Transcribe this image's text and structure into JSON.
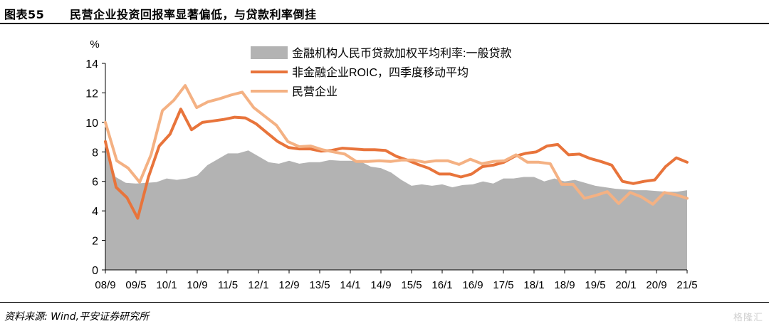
{
  "header": {
    "figure_num": "图表55",
    "title": "民营企业投资回报率显著偏低，与贷款利率倒挂"
  },
  "footer": {
    "source": "资料来源: Wind,平安证券研究所",
    "watermark": "格隆汇"
  },
  "chart_data": {
    "type": "line",
    "ylabel": "%",
    "ylim": [
      0,
      14
    ],
    "yticks": [
      0,
      2,
      4,
      6,
      8,
      10,
      12,
      14
    ],
    "x_tick_labels": [
      "08/9",
      "09/5",
      "10/1",
      "10/9",
      "11/5",
      "12/1",
      "12/9",
      "13/5",
      "14/1",
      "14/9",
      "15/5",
      "16/1",
      "16/9",
      "17/5",
      "18/1",
      "18/9",
      "19/5",
      "20/1",
      "20/9",
      "21/5"
    ],
    "legend": "top-right",
    "colors": {
      "area": "#b3b3b3",
      "roic": "#e8743b",
      "private": "#f4b183"
    },
    "series": [
      {
        "name": "金融机构人民币贷款加权平均利率:一般贷款",
        "style": "area",
        "values": [
          8.5,
          6.3,
          5.9,
          5.85,
          5.9,
          5.95,
          6.2,
          6.1,
          6.2,
          6.4,
          7.1,
          7.5,
          7.9,
          7.9,
          8.1,
          7.7,
          7.3,
          7.2,
          7.4,
          7.2,
          7.3,
          7.3,
          7.45,
          7.4,
          7.4,
          7.35,
          7.0,
          6.9,
          6.6,
          6.1,
          5.7,
          5.8,
          5.7,
          5.8,
          5.6,
          5.75,
          5.8,
          6.0,
          5.85,
          6.2,
          6.2,
          6.3,
          6.3,
          6.0,
          6.2,
          6.0,
          6.1,
          5.9,
          5.7,
          5.6,
          5.5,
          5.45,
          5.4,
          5.4,
          5.35,
          5.3,
          5.3,
          5.4
        ]
      },
      {
        "name": "非金融企业ROIC，四季度移动平均",
        "style": "line",
        "values": [
          8.7,
          5.6,
          4.9,
          3.5,
          6.3,
          8.4,
          9.2,
          10.9,
          9.5,
          10.0,
          10.1,
          10.2,
          10.35,
          10.3,
          9.9,
          9.3,
          8.7,
          8.3,
          8.2,
          8.2,
          8.05,
          8.1,
          8.25,
          8.2,
          8.15,
          8.15,
          8.1,
          7.7,
          7.45,
          7.15,
          6.9,
          6.5,
          6.5,
          6.3,
          6.5,
          7.0,
          7.1,
          7.3,
          7.7,
          7.9,
          8.0,
          8.4,
          8.5,
          7.8,
          7.85,
          7.55,
          7.35,
          7.1,
          6.0,
          5.85,
          6.0,
          6.1,
          7.0,
          7.6,
          7.3
        ]
      },
      {
        "name": "民营企业",
        "style": "line",
        "values": [
          10.0,
          7.4,
          6.9,
          5.95,
          7.8,
          10.8,
          11.5,
          12.5,
          11.0,
          11.4,
          11.6,
          11.85,
          12.05,
          11.0,
          10.4,
          9.8,
          8.7,
          8.35,
          8.4,
          8.15,
          8.0,
          7.85,
          7.35,
          7.35,
          7.4,
          7.35,
          7.45,
          7.45,
          7.3,
          7.4,
          7.4,
          7.15,
          7.5,
          7.2,
          7.35,
          7.4,
          7.8,
          7.3,
          7.3,
          7.2,
          5.8,
          5.8,
          4.85,
          5.05,
          5.3,
          4.5,
          5.25,
          4.95,
          4.45,
          5.25,
          5.1,
          4.85
        ]
      }
    ]
  }
}
